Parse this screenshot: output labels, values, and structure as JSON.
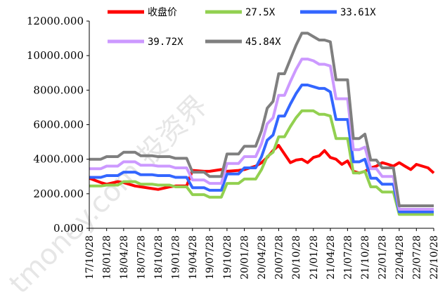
{
  "chart_data": {
    "type": "line",
    "title": "",
    "xlabel": "",
    "ylabel": "",
    "ylim": [
      0,
      12000
    ],
    "y_ticks": [
      0,
      2000,
      4000,
      6000,
      8000,
      10000,
      12000
    ],
    "y_tick_labels": [
      "0.000",
      "2000.000",
      "4000.000",
      "6000.000",
      "8000.000",
      "10000.000",
      "12000.000"
    ],
    "x_tick_labels": [
      "2017/10/28",
      "2018/01/28",
      "2018/04/28",
      "2018/07/28",
      "2018/10/28",
      "2019/01/28",
      "2019/04/28",
      "2019/07/28",
      "2019/10/28",
      "2020/01/28",
      "2020/04/28",
      "2020/07/28",
      "2020/10/28",
      "2021/01/28",
      "2021/04/28",
      "2021/07/28",
      "2021/10/28",
      "2022/01/28",
      "2022/04/28",
      "2022/07/28",
      "2022/10/28"
    ],
    "x_tick_labels_visible": [
      "17/10/28",
      "18/01/28",
      "18/04/28",
      "18/07/28",
      "18/10/28",
      "19/01/28",
      "19/04/28",
      "19/07/28",
      "19/10/28",
      "20/01/28",
      "20/04/28",
      "20/07/28",
      "20/10/28",
      "21/01/28",
      "21/04/28",
      "21/07/28",
      "21/10/28",
      "22/01/28",
      "22/04/28",
      "22/07/28",
      "22/10/28"
    ],
    "legend_position": "top",
    "grid": false,
    "x": [
      "2017/10/28",
      "2017/12/28",
      "2018/01/28",
      "2018/03/28",
      "2018/04/28",
      "2018/06/28",
      "2018/07/28",
      "2018/09/28",
      "2018/10/28",
      "2018/12/28",
      "2019/01/28",
      "2019/03/28",
      "2019/04/28",
      "2019/06/28",
      "2019/07/28",
      "2019/09/28",
      "2019/10/28",
      "2019/12/28",
      "2020/01/28",
      "2020/03/28",
      "2020/04/28",
      "2020/05/28",
      "2020/06/28",
      "2020/07/28",
      "2020/08/28",
      "2020/09/28",
      "2020/10/28",
      "2020/11/28",
      "2020/12/28",
      "2021/01/28",
      "2021/02/28",
      "2021/03/28",
      "2021/04/28",
      "2021/05/28",
      "2021/06/28",
      "2021/07/28",
      "2021/08/28",
      "2021/09/28",
      "2021/10/28",
      "2021/11/28",
      "2021/12/28",
      "2022/01/28",
      "2022/02/28",
      "2022/03/28",
      "2022/04/28",
      "2022/05/28",
      "2022/06/28",
      "2022/07/28",
      "2022/08/28",
      "2022/09/28",
      "2022/10/28"
    ],
    "series": [
      {
        "name": "收盘价",
        "color": "#ff0000",
        "values": [
          2900,
          2650,
          2550,
          2700,
          2650,
          2450,
          2400,
          2300,
          2250,
          2400,
          2450,
          2450,
          3350,
          3300,
          3300,
          3400,
          3300,
          3350,
          3400,
          3600,
          3800,
          4100,
          4500,
          4800,
          4300,
          3800,
          3950,
          4000,
          3800,
          4100,
          4200,
          4500,
          4100,
          4000,
          3700,
          3900,
          3300,
          3200,
          3300,
          3500,
          3600,
          3800,
          3700,
          3600,
          3800,
          3600,
          3400,
          3700,
          3600,
          3500,
          3200
        ]
      },
      {
        "name": "27.5X",
        "color": "#92d050",
        "values": [
          2450,
          2450,
          2500,
          2500,
          2700,
          2700,
          2550,
          2550,
          2500,
          2500,
          2400,
          2400,
          1950,
          1950,
          1800,
          1800,
          2600,
          2600,
          2850,
          2850,
          3400,
          4150,
          4400,
          5300,
          5300,
          5900,
          6400,
          6800,
          6800,
          6800,
          6600,
          6600,
          6500,
          5200,
          5200,
          5200,
          3200,
          3200,
          3300,
          2400,
          2400,
          2100,
          2100,
          2100,
          800,
          800,
          800,
          800,
          800,
          800,
          800
        ]
      },
      {
        "name": "33.61X",
        "color": "#3366ff",
        "values": [
          2950,
          2950,
          3050,
          3050,
          3250,
          3250,
          3100,
          3100,
          3050,
          3050,
          2950,
          2950,
          2350,
          2350,
          2200,
          2200,
          3150,
          3150,
          3500,
          3500,
          4150,
          5100,
          5400,
          6500,
          6500,
          7200,
          7800,
          8300,
          8300,
          8200,
          8100,
          8100,
          7900,
          6300,
          6300,
          6300,
          3850,
          3850,
          4000,
          2900,
          2900,
          2550,
          2550,
          2550,
          950,
          950,
          950,
          950,
          950,
          950,
          950
        ]
      },
      {
        "name": "39.72X",
        "color": "#cc99ff",
        "values": [
          3450,
          3450,
          3600,
          3600,
          3850,
          3850,
          3650,
          3650,
          3600,
          3600,
          3500,
          3500,
          2800,
          2800,
          2600,
          2600,
          3750,
          3750,
          4150,
          4150,
          4900,
          6050,
          6400,
          7700,
          7700,
          8500,
          9200,
          9800,
          9800,
          9700,
          9500,
          9500,
          9400,
          7500,
          7500,
          7500,
          4550,
          4550,
          4700,
          3450,
          3450,
          3000,
          3000,
          3000,
          1100,
          1100,
          1100,
          1100,
          1100,
          1100,
          1100
        ]
      },
      {
        "name": "45.84X",
        "color": "#7f7f7f",
        "values": [
          4000,
          4000,
          4150,
          4150,
          4400,
          4400,
          4200,
          4200,
          4150,
          4150,
          4050,
          4050,
          3250,
          3250,
          3000,
          3000,
          4300,
          4300,
          4750,
          4750,
          5650,
          6950,
          7350,
          8950,
          8950,
          9800,
          10600,
          11300,
          11300,
          11100,
          10900,
          10900,
          10800,
          8600,
          8600,
          8600,
          5200,
          5200,
          5450,
          3950,
          3950,
          3500,
          3500,
          3500,
          1300,
          1300,
          1300,
          1300,
          1300,
          1300,
          1300
        ]
      }
    ]
  },
  "watermark": {
    "text": "tmoney.com 投资界"
  }
}
